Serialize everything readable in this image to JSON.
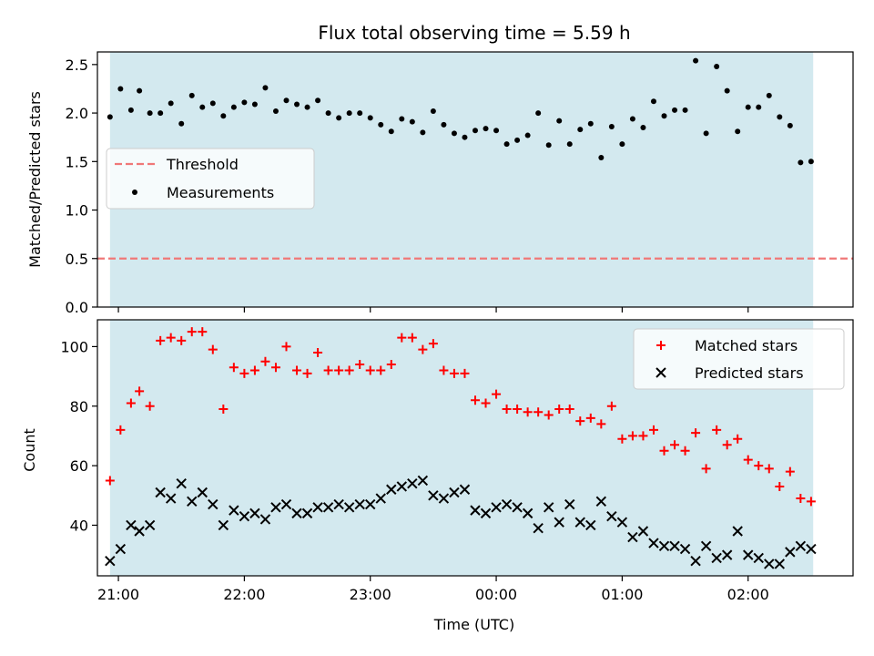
{
  "chart_data": [
    {
      "type": "scatter",
      "title": "Flux total observing time = 5.59 h",
      "ylabel": "Matched/Predicted stars",
      "xlim": [
        "20:50",
        "02:50"
      ],
      "ylim": [
        0,
        2.63
      ],
      "yticks": [
        "0.0",
        "0.5",
        "1.0",
        "1.5",
        "2.0",
        "2.5"
      ],
      "shaded_span": [
        "20:56",
        "02:31"
      ],
      "shade_color": "#d3e9ef",
      "legend_position": "center-left",
      "threshold": {
        "name": "Threshold",
        "value": 0.5,
        "color": "#f07878",
        "style": "dashed"
      },
      "series": [
        {
          "name": "Measurements",
          "color": "#000000",
          "marker": "dot",
          "x": [
            "20:56",
            "21:01",
            "21:06",
            "21:10",
            "21:15",
            "21:20",
            "21:25",
            "21:30",
            "21:35",
            "21:40",
            "21:45",
            "21:50",
            "21:55",
            "22:00",
            "22:05",
            "22:10",
            "22:15",
            "22:20",
            "22:25",
            "22:30",
            "22:35",
            "22:40",
            "22:45",
            "22:50",
            "22:55",
            "23:00",
            "23:05",
            "23:10",
            "23:15",
            "23:20",
            "23:25",
            "23:30",
            "23:35",
            "23:40",
            "23:45",
            "23:50",
            "23:55",
            "00:00",
            "00:05",
            "00:10",
            "00:15",
            "00:20",
            "00:25",
            "00:30",
            "00:35",
            "00:40",
            "00:45",
            "00:50",
            "00:55",
            "01:00",
            "01:05",
            "01:10",
            "01:15",
            "01:20",
            "01:25",
            "01:30",
            "01:35",
            "01:40",
            "01:45",
            "01:50",
            "01:55",
            "02:00",
            "02:05",
            "02:10",
            "02:15",
            "02:20",
            "02:25",
            "02:30"
          ],
          "y": [
            1.96,
            2.25,
            2.03,
            2.23,
            2.0,
            2.0,
            2.1,
            1.89,
            2.18,
            2.06,
            2.1,
            1.97,
            2.06,
            2.11,
            2.09,
            2.26,
            2.02,
            2.13,
            2.09,
            2.06,
            2.13,
            2.0,
            1.95,
            2.0,
            2.0,
            1.95,
            1.88,
            1.81,
            1.94,
            1.91,
            1.8,
            2.02,
            1.88,
            1.79,
            1.75,
            1.82,
            1.84,
            1.82,
            1.68,
            1.72,
            1.77,
            2.0,
            1.67,
            1.92,
            1.68,
            1.83,
            1.89,
            1.54,
            1.86,
            1.68,
            1.94,
            1.85,
            2.12,
            1.97,
            2.03,
            2.03,
            2.54,
            1.79,
            2.48,
            2.23,
            1.81,
            2.06,
            2.06,
            2.18,
            1.96,
            1.87,
            1.49,
            1.5
          ]
        }
      ]
    },
    {
      "type": "scatter",
      "xlabel": "Time (UTC)",
      "ylabel": "Count",
      "xlim": [
        "20:50",
        "02:50"
      ],
      "ylim": [
        23,
        109
      ],
      "xticks": [
        "21:00",
        "22:00",
        "23:00",
        "00:00",
        "01:00",
        "02:00"
      ],
      "yticks": [
        "40",
        "60",
        "80",
        "100"
      ],
      "shaded_span": [
        "20:56",
        "02:31"
      ],
      "shade_color": "#d3e9ef",
      "legend_position": "top-right",
      "x": [
        "20:56",
        "21:01",
        "21:06",
        "21:10",
        "21:15",
        "21:20",
        "21:25",
        "21:30",
        "21:35",
        "21:40",
        "21:45",
        "21:50",
        "21:55",
        "22:00",
        "22:05",
        "22:10",
        "22:15",
        "22:20",
        "22:25",
        "22:30",
        "22:35",
        "22:40",
        "22:45",
        "22:50",
        "22:55",
        "23:00",
        "23:05",
        "23:10",
        "23:15",
        "23:20",
        "23:25",
        "23:30",
        "23:35",
        "23:40",
        "23:45",
        "23:50",
        "23:55",
        "00:00",
        "00:05",
        "00:10",
        "00:15",
        "00:20",
        "00:25",
        "00:30",
        "00:35",
        "00:40",
        "00:45",
        "00:50",
        "00:55",
        "01:00",
        "01:05",
        "01:10",
        "01:15",
        "01:20",
        "01:25",
        "01:30",
        "01:35",
        "01:40",
        "01:45",
        "01:50",
        "01:55",
        "02:00",
        "02:05",
        "02:10",
        "02:15",
        "02:20",
        "02:25",
        "02:30"
      ],
      "series": [
        {
          "name": "Matched stars",
          "color": "#ff0000",
          "marker": "plus",
          "y": [
            55,
            72,
            81,
            85,
            80,
            102,
            103,
            102,
            105,
            105,
            99,
            79,
            93,
            91,
            92,
            95,
            93,
            100,
            92,
            91,
            98,
            92,
            92,
            92,
            94,
            92,
            92,
            94,
            103,
            103,
            99,
            101,
            92,
            91,
            91,
            82,
            81,
            84,
            79,
            79,
            78,
            78,
            77,
            79,
            79,
            75,
            76,
            74,
            80,
            69,
            70,
            70,
            72,
            65,
            67,
            65,
            71,
            59,
            72,
            67,
            69,
            62,
            60,
            59,
            53,
            58,
            49,
            48
          ]
        },
        {
          "name": "Predicted stars",
          "color": "#000000",
          "marker": "x",
          "y": [
            28,
            32,
            40,
            38,
            40,
            51,
            49,
            54,
            48,
            51,
            47,
            40,
            45,
            43,
            44,
            42,
            46,
            47,
            44,
            44,
            46,
            46,
            47,
            46,
            47,
            47,
            49,
            52,
            53,
            54,
            55,
            50,
            49,
            51,
            52,
            45,
            44,
            46,
            47,
            46,
            44,
            39,
            46,
            41,
            47,
            41,
            40,
            48,
            43,
            41,
            36,
            38,
            34,
            33,
            33,
            32,
            28,
            33,
            29,
            30,
            38,
            30,
            29,
            27,
            27,
            31,
            33,
            32
          ]
        }
      ]
    }
  ]
}
